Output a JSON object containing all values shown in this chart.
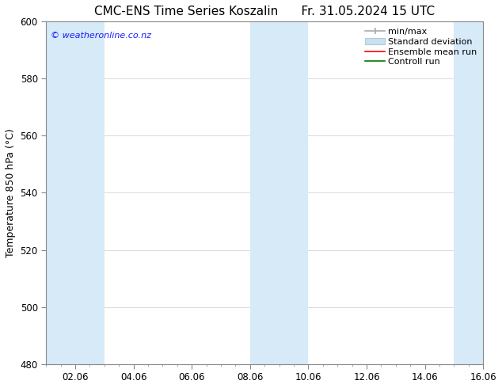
{
  "title": "CMC-ENS Time Series Koszalin",
  "title_right": "Fr. 31.05.2024 15 UTC",
  "ylabel": "Temperature 850 hPa (°C)",
  "ylim": [
    480,
    600
  ],
  "yticks": [
    480,
    500,
    520,
    540,
    560,
    580,
    600
  ],
  "xlim": [
    0,
    15
  ],
  "xtick_labels": [
    "02.06",
    "04.06",
    "06.06",
    "08.06",
    "10.06",
    "12.06",
    "14.06",
    "16.06"
  ],
  "xtick_positions": [
    1,
    3,
    5,
    7,
    9,
    11,
    13,
    15
  ],
  "background_color": "#ffffff",
  "plot_bg_color": "#ffffff",
  "watermark_text": "© weatheronline.co.nz",
  "watermark_color": "#1a1aff",
  "shaded_bands": [
    {
      "x_start": 0.0,
      "x_end": 2.0,
      "color": "#d6eaf8"
    },
    {
      "x_start": 7.0,
      "x_end": 9.0,
      "color": "#d6eaf8"
    },
    {
      "x_start": 14.0,
      "x_end": 15.0,
      "color": "#d6eaf8"
    }
  ],
  "legend_entries": [
    {
      "label": "min/max",
      "color": "#aaaaaa",
      "type": "errorbar"
    },
    {
      "label": "Standard deviation",
      "color": "#cce0f0",
      "type": "box"
    },
    {
      "label": "Ensemble mean run",
      "color": "#ff0000",
      "type": "line"
    },
    {
      "label": "Controll run",
      "color": "#007700",
      "type": "line"
    }
  ],
  "title_fontsize": 11,
  "tick_fontsize": 8.5,
  "legend_fontsize": 8,
  "ylabel_fontsize": 9,
  "watermark_fontsize": 8
}
